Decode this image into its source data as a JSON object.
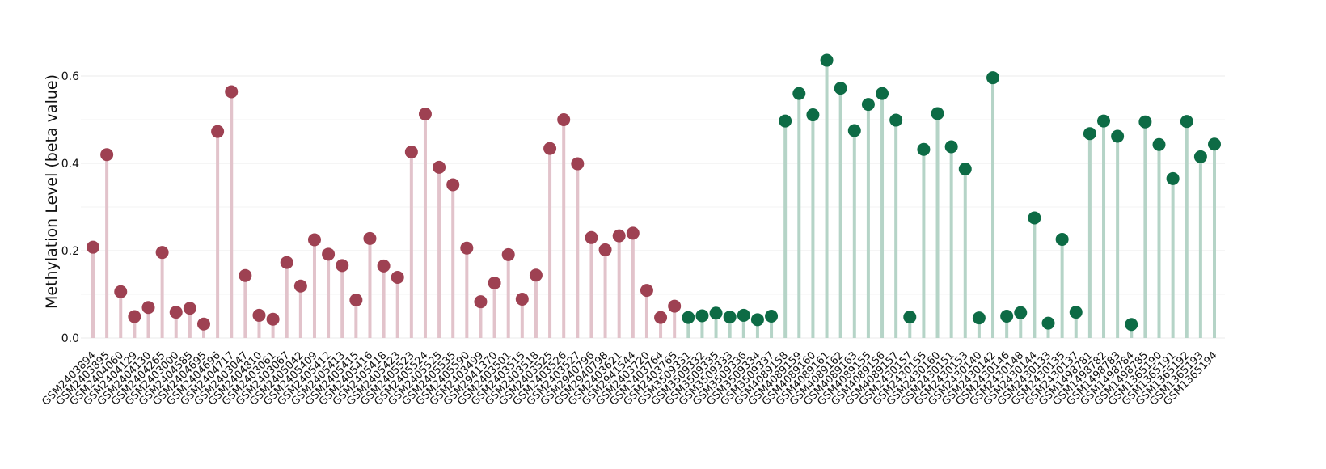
{
  "chart_data": {
    "type": "lollipop",
    "ylabel": "Methylation Level (beta value)",
    "xlabel": "",
    "ylim": [
      0,
      0.66
    ],
    "yticks": [
      0.0,
      0.2,
      0.4,
      0.6
    ],
    "ytick_labels": [
      "0.0",
      "0.2",
      "0.4",
      "0.6"
    ],
    "grid": "horizontal",
    "colors": {
      "groupA_dot": "#9e4152",
      "groupA_stem": "#e2c3cb",
      "groupB_dot": "#0d6b45",
      "groupB_stem": "#b5d4c7",
      "grid": "#ebebeb"
    },
    "categories": [
      "GSM2403894",
      "GSM2403895",
      "GSM2404060",
      "GSM2404129",
      "GSM2404130",
      "GSM2404265",
      "GSM2403000",
      "GSM2404585",
      "GSM2404695",
      "GSM2404696",
      "GSM2404717",
      "GSM2403047",
      "GSM2404810",
      "GSM2403061",
      "GSM2403067",
      "GSM2405042",
      "GSM2405409",
      "GSM2405412",
      "GSM2405413",
      "GSM2405415",
      "GSM2405416",
      "GSM2405418",
      "GSM2405423",
      "GSM2405523",
      "GSM2405524",
      "GSM2405525",
      "GSM2405535",
      "GSM2405590",
      "GSM2403499",
      "GSM2941370",
      "GSM2403501",
      "GSM2403515",
      "GSM2403518",
      "GSM2403525",
      "GSM2403526",
      "GSM2403527",
      "GSM2940796",
      "GSM2940798",
      "GSM2403621",
      "GSM2941544",
      "GSM2403720",
      "GSM2403764",
      "GSM2403765",
      "GSM3509331",
      "GSM3509332",
      "GSM3509335",
      "GSM3509333",
      "GSM3509336",
      "GSM3509334",
      "GSM3509337",
      "GSM4089158",
      "GSM4089159",
      "GSM4089160",
      "GSM4089161",
      "GSM4089162",
      "GSM4089163",
      "GSM4089155",
      "GSM4089156",
      "GSM4089157",
      "GSM2430157",
      "GSM2430155",
      "GSM2430160",
      "GSM2430151",
      "GSM2430153",
      "GSM2430140",
      "GSM2430142",
      "GSM2430146",
      "GSM2430148",
      "GSM2430144",
      "GSM2430133",
      "GSM2430135",
      "GSM2430137",
      "GSM1498781",
      "GSM1498782",
      "GSM1498783",
      "GSM1498784",
      "GSM1498785",
      "GSM1365190",
      "GSM1365191",
      "GSM1365192",
      "GSM1365193",
      "GSM1365194"
    ],
    "values": [
      0.208,
      0.42,
      0.106,
      0.049,
      0.07,
      0.196,
      0.059,
      0.068,
      0.032,
      0.473,
      0.564,
      0.143,
      0.052,
      0.043,
      0.173,
      0.119,
      0.225,
      0.192,
      0.166,
      0.087,
      0.228,
      0.165,
      0.139,
      0.426,
      0.513,
      0.391,
      0.351,
      0.206,
      0.083,
      0.126,
      0.191,
      0.089,
      0.144,
      0.434,
      0.5,
      0.399,
      0.23,
      0.202,
      0.234,
      0.24,
      0.109,
      0.047,
      0.073,
      0.047,
      0.051,
      0.057,
      0.048,
      0.052,
      0.042,
      0.05,
      0.497,
      0.56,
      0.511,
      0.636,
      0.572,
      0.475,
      0.535,
      0.56,
      0.499,
      0.048,
      0.432,
      0.514,
      0.438,
      0.387,
      0.046,
      0.596,
      0.05,
      0.058,
      0.275,
      0.034,
      0.226,
      0.059,
      0.468,
      0.497,
      0.462,
      0.031,
      0.495,
      0.443,
      0.365,
      0.496,
      0.415,
      0.444
    ],
    "groups": [
      "A",
      "A",
      "A",
      "A",
      "A",
      "A",
      "A",
      "A",
      "A",
      "A",
      "A",
      "A",
      "A",
      "A",
      "A",
      "A",
      "A",
      "A",
      "A",
      "A",
      "A",
      "A",
      "A",
      "A",
      "A",
      "A",
      "A",
      "A",
      "A",
      "A",
      "A",
      "A",
      "A",
      "A",
      "A",
      "A",
      "A",
      "A",
      "A",
      "A",
      "A",
      "A",
      "A",
      "B",
      "B",
      "B",
      "B",
      "B",
      "B",
      "B",
      "B",
      "B",
      "B",
      "B",
      "B",
      "B",
      "B",
      "B",
      "B",
      "B",
      "B",
      "B",
      "B",
      "B",
      "B",
      "B",
      "B",
      "B",
      "B",
      "B",
      "B",
      "B",
      "B",
      "B",
      "B",
      "B",
      "B",
      "B",
      "B",
      "B",
      "B",
      "B"
    ]
  }
}
